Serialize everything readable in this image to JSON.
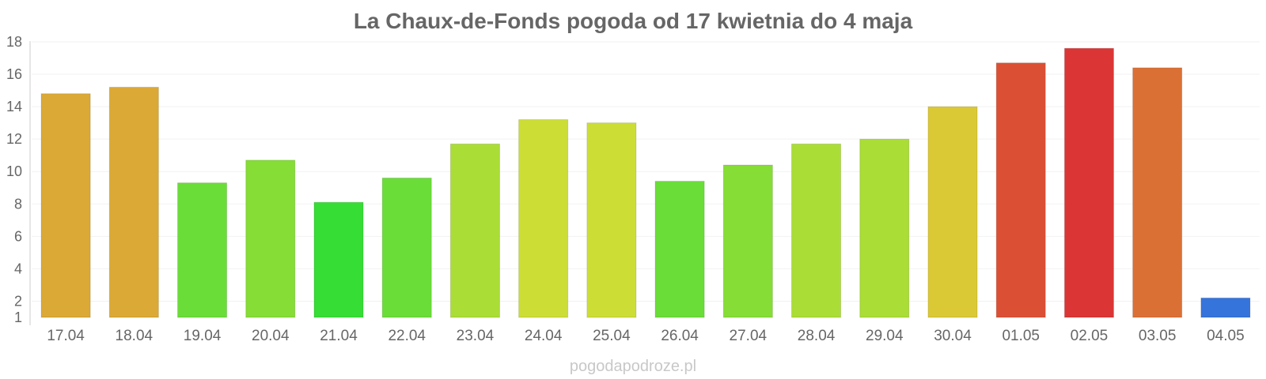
{
  "watermark": "pogodapodroze.pl",
  "chart_data": {
    "type": "bar",
    "title": "La Chaux-de-Fonds pogoda od 17 kwietnia do 4 maja",
    "xlabel": "",
    "ylabel": "",
    "ylim": [
      1,
      18
    ],
    "yticks": [
      1,
      2,
      4,
      6,
      8,
      10,
      12,
      14,
      16,
      18
    ],
    "grid": true,
    "categories": [
      "17.04",
      "18.04",
      "19.04",
      "20.04",
      "21.04",
      "22.04",
      "23.04",
      "24.04",
      "25.04",
      "26.04",
      "27.04",
      "28.04",
      "29.04",
      "30.04",
      "01.05",
      "02.05",
      "03.05",
      "04.05"
    ],
    "values": [
      14.8,
      15.2,
      9.3,
      10.7,
      8.1,
      9.6,
      11.7,
      13.2,
      13.0,
      9.4,
      10.4,
      11.7,
      12.0,
      14.0,
      16.7,
      17.6,
      16.4,
      2.2
    ],
    "colors": [
      "#dba935",
      "#dba935",
      "#6add38",
      "#85dd35",
      "#35dd35",
      "#6add38",
      "#aadd35",
      "#ccdd35",
      "#ccdd35",
      "#6add38",
      "#85dd35",
      "#aadd35",
      "#aadd35",
      "#dbc835",
      "#db5035",
      "#db3535",
      "#db7035",
      "#3574db"
    ]
  }
}
